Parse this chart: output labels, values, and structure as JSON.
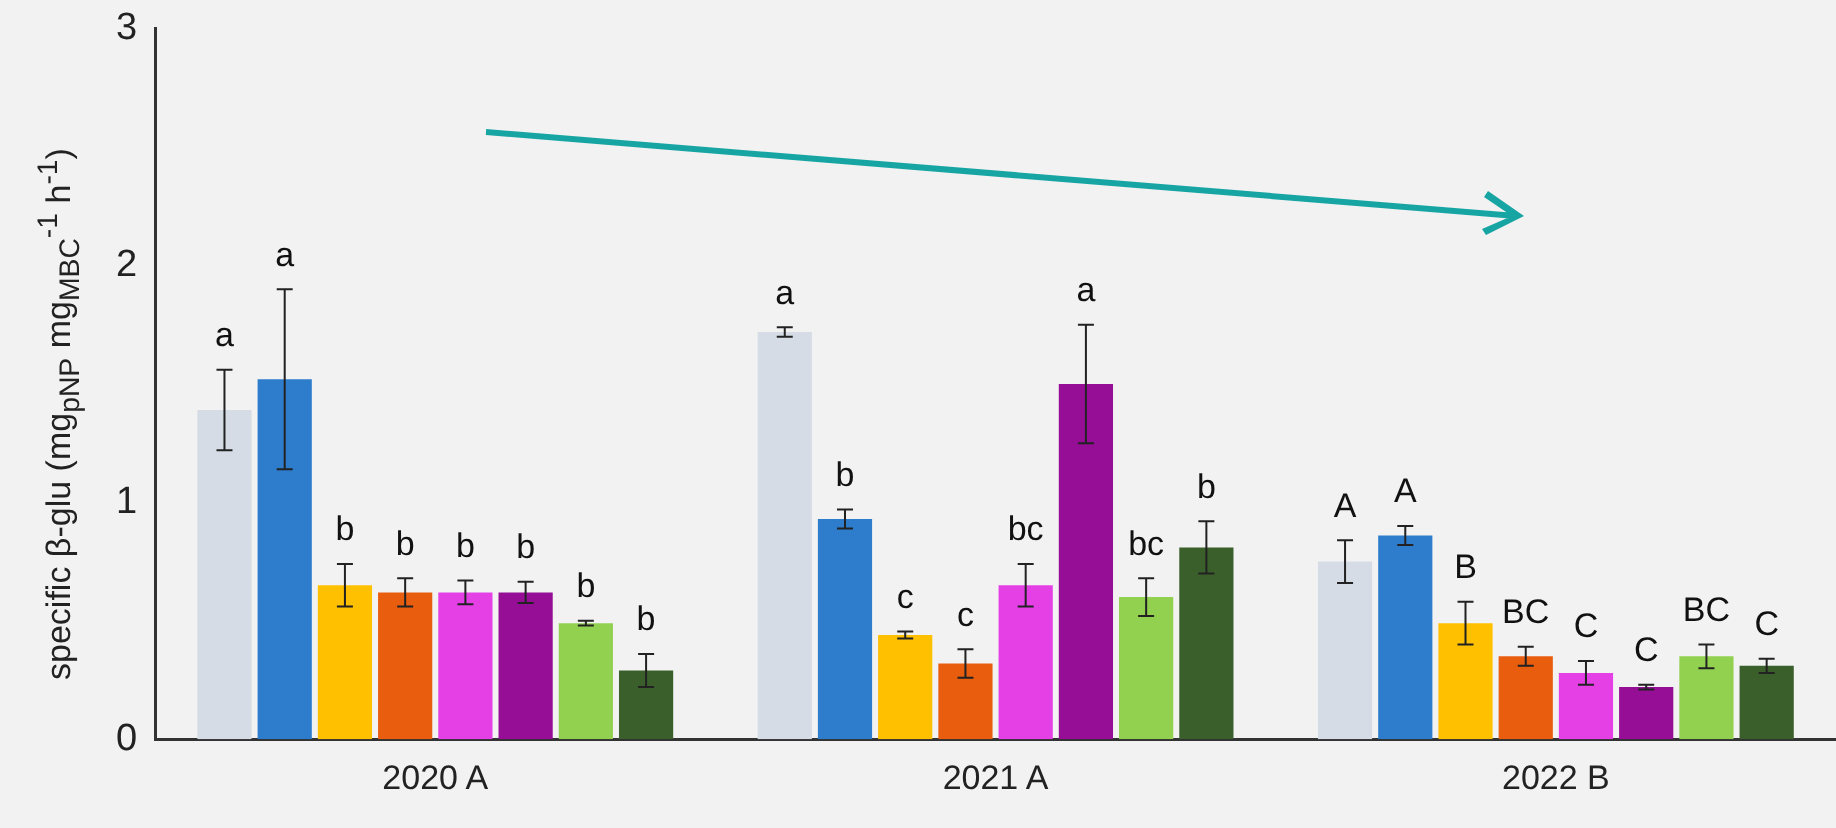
{
  "chart_data": {
    "type": "bar",
    "ylabel": "specific β-glu (mg$_{pNP}$ mg$_{MBC}$$^{-1}$ h$^{-1}$)",
    "categories": [
      "2020 A",
      "2021 A",
      "2022 B"
    ],
    "ylim": [
      0,
      3
    ],
    "yticks": [
      0,
      1,
      2,
      3
    ],
    "grid": false,
    "legend": false,
    "series": [
      {
        "color": "#d6dce5",
        "values": [
          1.39,
          1.72,
          0.75
        ],
        "errors": [
          0.17,
          0.02,
          0.09
        ],
        "value_labels": [
          "a",
          "a",
          "A"
        ]
      },
      {
        "color": "#2e7dcd",
        "values": [
          1.52,
          0.93,
          0.86
        ],
        "errors": [
          0.38,
          0.04,
          0.04
        ],
        "value_labels": [
          "a",
          "b",
          "A"
        ]
      },
      {
        "color": "#ffc000",
        "values": [
          0.65,
          0.44,
          0.49
        ],
        "errors": [
          0.09,
          0.015,
          0.09
        ],
        "value_labels": [
          "b",
          "c",
          "B"
        ]
      },
      {
        "color": "#e95d0f",
        "values": [
          0.62,
          0.32,
          0.35
        ],
        "errors": [
          0.06,
          0.06,
          0.04
        ],
        "value_labels": [
          "b",
          "c",
          "BC"
        ]
      },
      {
        "color": "#e440e6",
        "values": [
          0.62,
          0.65,
          0.28
        ],
        "errors": [
          0.05,
          0.09,
          0.05
        ],
        "value_labels": [
          "b",
          "bc",
          "C"
        ]
      },
      {
        "color": "#950e95",
        "values": [
          0.62,
          1.5,
          0.22
        ],
        "errors": [
          0.045,
          0.25,
          0.01
        ],
        "value_labels": [
          "b",
          "a",
          "C"
        ]
      },
      {
        "color": "#92d050",
        "values": [
          0.49,
          0.6,
          0.35
        ],
        "errors": [
          0.01,
          0.08,
          0.05
        ],
        "value_labels": [
          "b",
          "bc",
          "BC"
        ]
      },
      {
        "color": "#3a5f2b",
        "values": [
          0.29,
          0.81,
          0.31
        ],
        "errors": [
          0.07,
          0.11,
          0.03
        ],
        "value_labels": [
          "b",
          "b",
          "C"
        ]
      }
    ]
  }
}
